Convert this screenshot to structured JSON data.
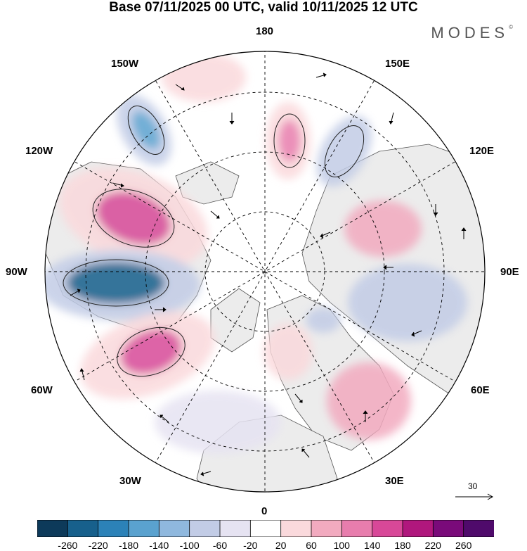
{
  "title": "Base 07/11/2025 00 UTC, valid 10/11/2025 12 UTC",
  "brand": "MODES",
  "brand_mark": "©",
  "longitude_labels": {
    "lon_180": "180",
    "lon_150w": "150W",
    "lon_150e": "150E",
    "lon_120w": "120W",
    "lon_120e": "120E",
    "lon_90w": "90W",
    "lon_90e": "90E",
    "lon_60w": "60W",
    "lon_60e": "60E",
    "lon_30w": "30W",
    "lon_30e": "30E",
    "lon_0": "0"
  },
  "wind_scale": {
    "label": "30"
  },
  "colorbar": {
    "ticks": [
      "-260",
      "-220",
      "-180",
      "-140",
      "-100",
      "-60",
      "-20",
      "20",
      "60",
      "100",
      "140",
      "180",
      "220",
      "260"
    ],
    "colors": [
      "#0d3a5a",
      "#17608c",
      "#2c82b8",
      "#5aa2cf",
      "#8fb8de",
      "#c2cce6",
      "#e6e3f2",
      "#ffffff",
      "#fad9dc",
      "#f2aabf",
      "#e87dad",
      "#d84898",
      "#b0177d",
      "#7a0a7a",
      "#4f0a6b"
    ]
  },
  "map_colors": {
    "ocean": "#ffffff",
    "land": "#ececec",
    "anomaly_pos_light": "#fad9dc",
    "anomaly_pos_mid": "#f2aabf",
    "anomaly_pos_strong": "#e87dad",
    "anomaly_pos_max": "#d84898",
    "anomaly_neg_light": "#e6e3f2",
    "anomaly_neg_mid": "#c2cce6",
    "anomaly_neg_strong": "#5aa2cf",
    "anomaly_neg_max": "#17608c"
  }
}
